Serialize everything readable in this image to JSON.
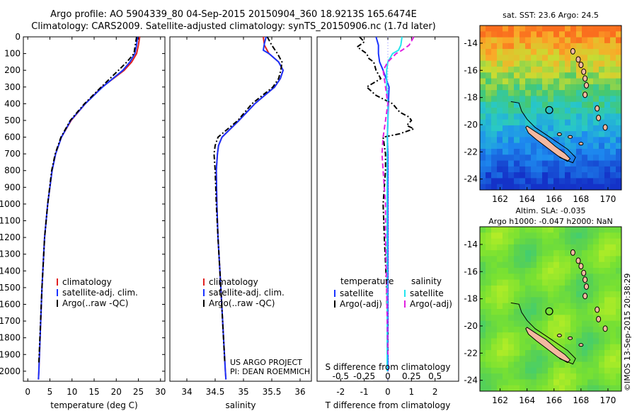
{
  "header": {
    "title_line1": "Argo profile: AO 5904339_80 04-Sep-2015 20150904_360 18.9213S 165.6474E",
    "title_line2": "Climatology: CARS2009. Satellite-adjusted climatology: synTS_20150906.nc (1.7d later)"
  },
  "colors": {
    "climatology": "#e02020",
    "satellite_temp": "#1a33ff",
    "argo": "#000000",
    "satellite_sal": "#22e5ee",
    "argo_sal_adj": "#e020e0",
    "land": "#f4b9a0"
  },
  "chart_data": [
    {
      "type": "line",
      "id": "temperature",
      "xlabel": "temperature (deg C)",
      "ylabel": "",
      "xlim": [
        -1,
        31
      ],
      "ylim": [
        2060,
        0
      ],
      "x_ticks": [
        "0",
        "5",
        "10",
        "15",
        "20",
        "25",
        "30"
      ],
      "y_ticks": [
        "0",
        "100",
        "200",
        "300",
        "400",
        "500",
        "600",
        "700",
        "800",
        "900",
        "1000",
        "1100",
        "1200",
        "1300",
        "1400",
        "1500",
        "1600",
        "1700",
        "1800",
        "1900",
        "2000"
      ],
      "legend": [
        "climatology",
        "satellite-adj. clim.",
        "Argo(..raw -QC)"
      ],
      "series": [
        {
          "name": "climatology",
          "depth": [
            0,
            50,
            100,
            150,
            200,
            300,
            400,
            500,
            600,
            700,
            800,
            1000,
            1200,
            1500,
            2000,
            2050
          ],
          "values": [
            25.3,
            25.0,
            24.6,
            23.5,
            21.8,
            16.8,
            13.0,
            9.8,
            7.6,
            6.3,
            5.5,
            4.5,
            3.8,
            3.2,
            2.5,
            2.4
          ]
        },
        {
          "name": "satellite-adj. clim.",
          "depth": [
            0,
            50,
            100,
            150,
            200,
            300,
            400,
            500,
            600,
            700,
            800,
            1000,
            1200,
            1500,
            2000,
            2050
          ],
          "values": [
            24.8,
            24.6,
            24.2,
            23.1,
            21.5,
            16.9,
            13.0,
            9.7,
            7.6,
            6.3,
            5.5,
            4.5,
            3.8,
            3.2,
            2.5,
            2.4
          ]
        },
        {
          "name": "Argo(..raw -QC)",
          "depth": [
            0,
            50,
            100,
            150,
            200,
            300,
            400,
            500,
            600,
            700,
            800,
            1000,
            1200,
            1500,
            1950
          ],
          "values": [
            24.6,
            24.3,
            24.0,
            22.4,
            20.5,
            16.6,
            12.8,
            9.6,
            7.5,
            6.2,
            5.4,
            4.5,
            3.8,
            3.2,
            2.5
          ]
        }
      ]
    },
    {
      "type": "line",
      "id": "salinity",
      "xlabel": "salinity",
      "xlim": [
        33.7,
        36.2
      ],
      "ylim": [
        2060,
        0
      ],
      "x_ticks": [
        "34",
        "34.5",
        "35",
        "35.5",
        "36"
      ],
      "legend": [
        "climatology",
        "satellite-adj. clim.",
        "Argo(..raw -QC)"
      ],
      "series": [
        {
          "name": "climatology",
          "depth": [
            0,
            50,
            100,
            150,
            200,
            250,
            300,
            400,
            500,
            600,
            650,
            700,
            800,
            1000,
            1200,
            1500,
            2000,
            2050
          ],
          "values": [
            35.35,
            35.37,
            35.45,
            35.62,
            35.7,
            35.65,
            35.55,
            35.2,
            34.92,
            34.62,
            34.56,
            34.54,
            34.52,
            34.53,
            34.55,
            34.6,
            34.68,
            34.69
          ]
        },
        {
          "name": "satellite-adj. clim.",
          "depth": [
            0,
            40,
            80,
            100,
            150,
            200,
            250,
            300,
            400,
            500,
            600,
            650,
            700,
            800,
            1000,
            1200,
            1500,
            2000,
            2050
          ],
          "values": [
            35.4,
            35.37,
            35.35,
            35.45,
            35.62,
            35.7,
            35.65,
            35.55,
            35.2,
            34.92,
            34.62,
            34.56,
            34.54,
            34.52,
            34.53,
            34.55,
            34.6,
            34.68,
            34.69
          ]
        },
        {
          "name": "Argo(..raw -QC)",
          "depth": [
            0,
            50,
            100,
            150,
            200,
            250,
            300,
            400,
            500,
            600,
            650,
            700,
            800,
            1000,
            1200,
            1500,
            1950
          ],
          "values": [
            35.42,
            35.5,
            35.6,
            35.68,
            35.66,
            35.62,
            35.52,
            35.15,
            34.9,
            34.55,
            34.5,
            34.48,
            34.5,
            34.52,
            34.55,
            34.6,
            34.67
          ]
        }
      ]
    },
    {
      "type": "line",
      "id": "differences",
      "xlabel": "T difference from climatology",
      "top_label": "S difference from climatology",
      "xlim": [
        -3,
        3
      ],
      "ylim": [
        2060,
        0
      ],
      "x_ticks": [
        "-2",
        "-1",
        "0",
        "1",
        "2"
      ],
      "s_ticks": [
        "-0.5",
        "-0.25",
        "0",
        "0.25",
        "0.5"
      ],
      "legend_headers": [
        "temperature",
        "salinity"
      ],
      "legend": [
        "satellite",
        "Argo(-adj)",
        "satellite",
        "Argo(-adj)"
      ],
      "series": [
        {
          "name": "satellite (temperature)",
          "depth": [
            0,
            50,
            100,
            150,
            200,
            300,
            400,
            500,
            600,
            700,
            800,
            1000,
            2000
          ],
          "values": [
            -0.5,
            -0.4,
            -0.4,
            -0.35,
            -0.2,
            0.05,
            0.02,
            0.0,
            -0.02,
            0.0,
            0.0,
            0.0,
            0.0
          ]
        },
        {
          "name": "Argo(-adj) (temperature)",
          "depth": [
            0,
            30,
            60,
            100,
            130,
            150,
            200,
            250,
            300,
            350,
            400,
            450,
            480,
            500,
            530,
            550,
            580,
            600,
            700,
            800,
            1000,
            1200,
            1500,
            1900
          ],
          "values": [
            -1.2,
            -1.0,
            -1.3,
            -0.9,
            -0.8,
            -0.6,
            -0.5,
            -0.3,
            -0.9,
            -0.5,
            0.2,
            0.5,
            0.9,
            1.0,
            0.8,
            1.1,
            0.5,
            -0.2,
            -0.1,
            -0.1,
            -0.2,
            -0.15,
            -0.05,
            0.0
          ]
        },
        {
          "name": "satellite (salinity)",
          "depth": [
            0,
            50,
            80,
            100,
            150,
            200,
            300,
            400,
            500,
            600,
            800,
            1000,
            2000
          ],
          "values": [
            0.6,
            0.55,
            0.45,
            0.2,
            0.0,
            -0.05,
            -0.05,
            0.0,
            0.0,
            -0.02,
            -0.03,
            -0.03,
            -0.03
          ]
        },
        {
          "name": "Argo(-adj) (salinity)",
          "depth": [
            0,
            50,
            80,
            100,
            150,
            200,
            300,
            400,
            500,
            600,
            700,
            800,
            900,
            1000,
            1200,
            1500,
            1900
          ],
          "values": [
            1.1,
            0.9,
            0.6,
            0.35,
            0.0,
            -0.2,
            -0.1,
            0.0,
            -0.1,
            -0.2,
            -0.25,
            -0.2,
            -0.15,
            -0.1,
            -0.1,
            -0.05,
            0.0
          ]
        }
      ]
    },
    {
      "type": "heatmap",
      "id": "sst-map",
      "title": "sat. SST: 23.6  Argo: 24.5",
      "xlim": [
        160.5,
        171
      ],
      "ylim": [
        -24.8,
        -12.7
      ],
      "x_ticks": [
        "162",
        "164",
        "166",
        "168",
        "170"
      ],
      "y_ticks": [
        "-14",
        "-16",
        "-18",
        "-20",
        "-22",
        "-24"
      ]
    },
    {
      "type": "heatmap",
      "id": "sla-map",
      "title": "Altim. SLA: -0.035",
      "subtitle": "Argo h1000: -0.047 h2000: NaN",
      "xlim": [
        160.5,
        171
      ],
      "ylim": [
        -24.8,
        -12.7
      ],
      "x_ticks": [
        "162",
        "164",
        "166",
        "168",
        "170"
      ],
      "y_ticks": [
        "-14",
        "-16",
        "-18",
        "-20",
        "-22",
        "-24"
      ]
    }
  ],
  "project": {
    "line1": "US ARGO PROJECT",
    "line2": "PI: DEAN ROEMMICH"
  },
  "stamp": "©IMOS 13-Sep-2015 20:38:29"
}
